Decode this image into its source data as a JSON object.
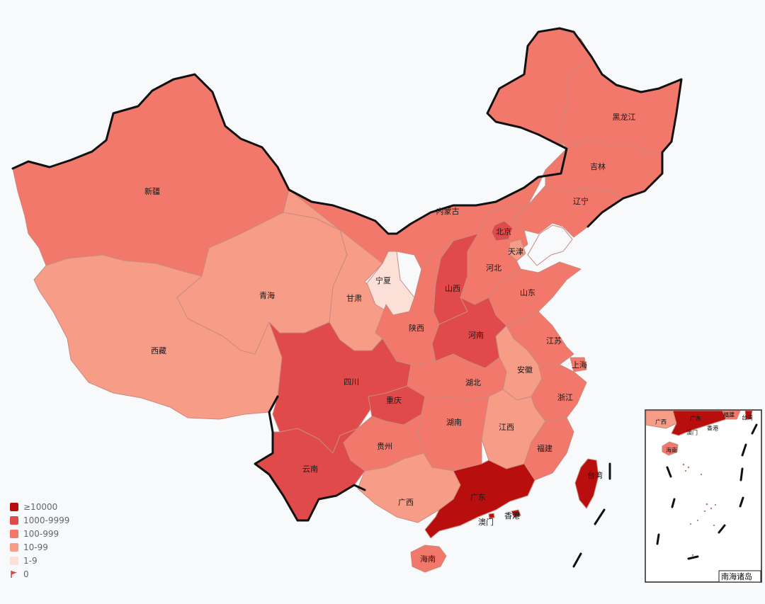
{
  "colors": {
    "c1": "#b90e0e",
    "c2": "#e04a4a",
    "c3": "#f1786a",
    "c4": "#f79c86",
    "c5": "#fbe0d8",
    "c0": "#d84848"
  },
  "legend": [
    {
      "label": "≥10000",
      "color": "c1"
    },
    {
      "label": "1000-9999",
      "color": "c2"
    },
    {
      "label": "100-999",
      "color": "c3"
    },
    {
      "label": "10-99",
      "color": "c4"
    },
    {
      "label": "1-9",
      "color": "c5"
    },
    {
      "label": "0",
      "color": "c0",
      "icon": "flag-icon"
    }
  ],
  "provinces": {
    "xinjiang": {
      "name": "新疆",
      "level": "c3"
    },
    "xizang": {
      "name": "西藏",
      "level": "c4"
    },
    "qinghai": {
      "name": "青海",
      "level": "c4"
    },
    "gansu": {
      "name": "甘肃",
      "level": "c4"
    },
    "neimenggu": {
      "name": "内蒙古",
      "level": "c3"
    },
    "heilongjiang": {
      "name": "黑龙江",
      "level": "c3"
    },
    "jilin": {
      "name": "吉林",
      "level": "c3"
    },
    "liaoning": {
      "name": "辽宁",
      "level": "c3"
    },
    "beijing": {
      "name": "北京",
      "level": "c2"
    },
    "tianjin": {
      "name": "天津",
      "level": "c4"
    },
    "hebei": {
      "name": "河北",
      "level": "c3"
    },
    "shanxi": {
      "name": "山西",
      "level": "c2"
    },
    "ningxia": {
      "name": "宁夏",
      "level": "c5"
    },
    "shaanxi": {
      "name": "陕西",
      "level": "c3"
    },
    "shandong": {
      "name": "山东",
      "level": "c3"
    },
    "henan": {
      "name": "河南",
      "level": "c2"
    },
    "jiangsu": {
      "name": "江苏",
      "level": "c3"
    },
    "shanghai": {
      "name": "上海",
      "level": "c3"
    },
    "anhui": {
      "name": "安徽",
      "level": "c4"
    },
    "hubei": {
      "name": "湖北",
      "level": "c3"
    },
    "sichuan": {
      "name": "四川",
      "level": "c2"
    },
    "chongqing": {
      "name": "重庆",
      "level": "c2"
    },
    "zhejiang": {
      "name": "浙江",
      "level": "c3"
    },
    "hunan": {
      "name": "湖南",
      "level": "c3"
    },
    "jiangxi": {
      "name": "江西",
      "level": "c4"
    },
    "guizhou": {
      "name": "贵州",
      "level": "c3"
    },
    "yunnan": {
      "name": "云南",
      "level": "c2"
    },
    "fujian": {
      "name": "福建",
      "level": "c3"
    },
    "guangxi": {
      "name": "广西",
      "level": "c4"
    },
    "guangdong": {
      "name": "广东",
      "level": "c1"
    },
    "taiwan": {
      "name": "台湾",
      "level": "c1"
    },
    "hainan": {
      "name": "海南",
      "level": "c3"
    },
    "hongkong": {
      "name": "香港",
      "level": "c1"
    },
    "macau": {
      "name": "澳门",
      "level": "c1"
    }
  },
  "inset": {
    "title": "南海诸岛",
    "labels": {
      "guangxi": "广西",
      "guangdong": "广东",
      "fujian": "福建",
      "taiwan": "台湾",
      "macau": "澳门",
      "hongkong": "香港",
      "hainan": "海南"
    }
  }
}
